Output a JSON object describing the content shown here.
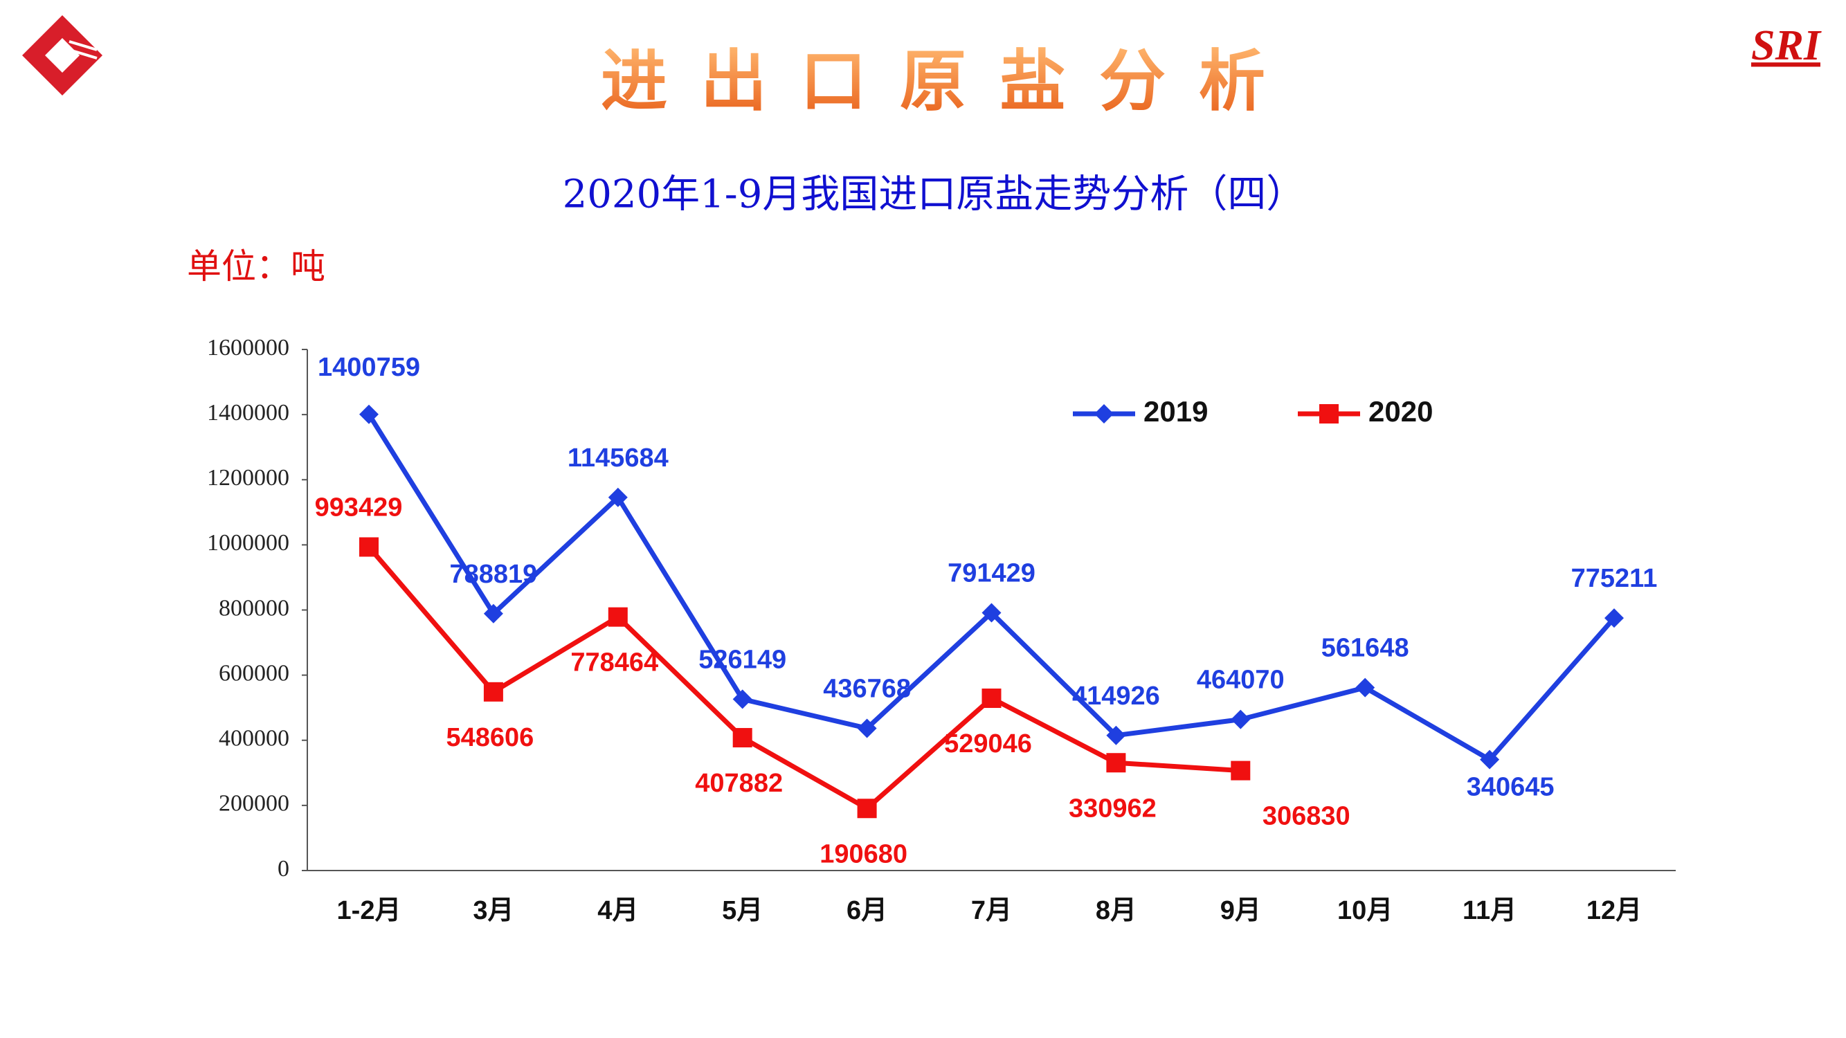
{
  "header": {
    "title": "进出口原盐分析",
    "brand": "SRI"
  },
  "chart_data": {
    "type": "line",
    "title": "2020年1-9月我国进口原盐走势分析（四）",
    "unit": "单位：吨",
    "categories": [
      "1-2月",
      "3月",
      "4月",
      "5月",
      "6月",
      "7月",
      "8月",
      "9月",
      "10月",
      "11月",
      "12月"
    ],
    "series": [
      {
        "name": "2019",
        "color": "#1f3fe0",
        "marker": "diamond",
        "values": [
          1400759,
          788819,
          1145684,
          526149,
          436768,
          791429,
          414926,
          464070,
          561648,
          340645,
          775211
        ]
      },
      {
        "name": "2020",
        "color": "#f01010",
        "marker": "square",
        "values": [
          993429,
          548606,
          778464,
          407882,
          190680,
          529046,
          330962,
          306830,
          null,
          null,
          null
        ]
      }
    ],
    "ylim": [
      0,
      1600000
    ],
    "yticks": [
      0,
      200000,
      400000,
      600000,
      800000,
      1000000,
      1200000,
      1400000,
      1600000
    ],
    "grid": false,
    "legend": "top-right"
  }
}
